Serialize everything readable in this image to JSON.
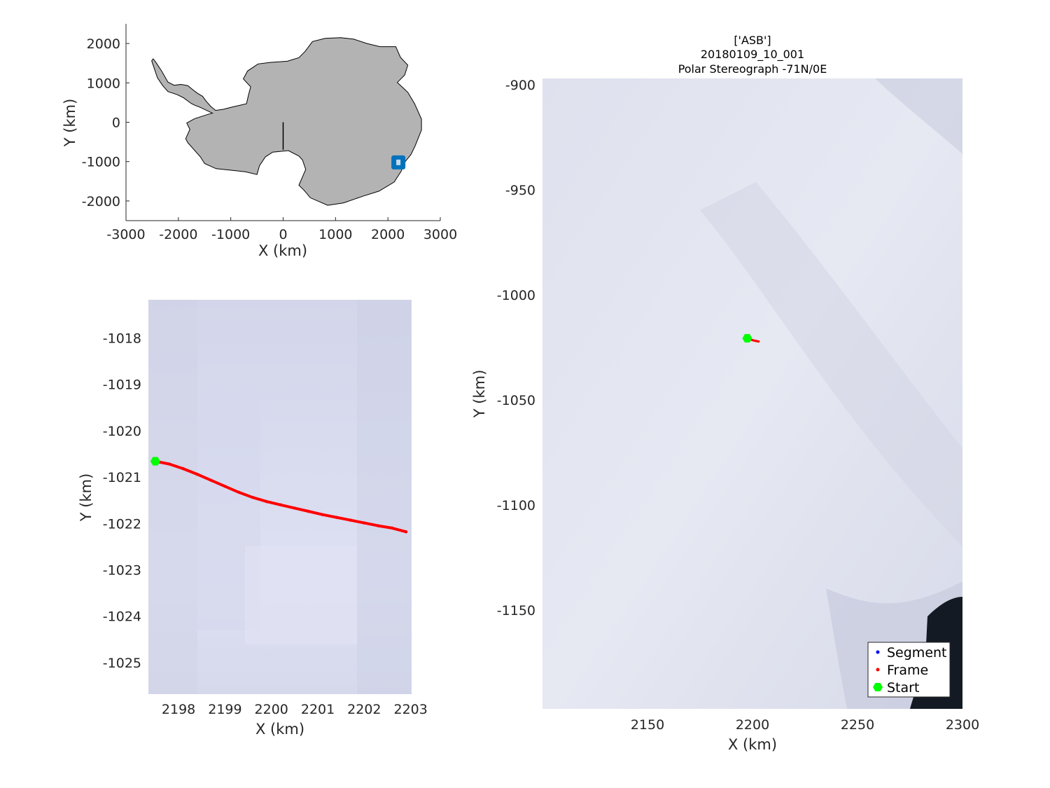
{
  "colors": {
    "background": "#ffffff",
    "axis": "#262626",
    "land": "#b3b3b3",
    "coast": "#000000",
    "marker_blue": "#0072bd",
    "ice": "#d8dbec",
    "ocean_dark": "#141a24",
    "segment": "#0000ff",
    "frame": "#ff0000",
    "start": "#00ff00"
  },
  "legend": {
    "placement": "bottom-right",
    "entries": [
      {
        "label": "Segment",
        "color": "#0000ff",
        "marker": "dot"
      },
      {
        "label": "Frame",
        "color": "#ff0000",
        "marker": "dot"
      },
      {
        "label": "Start",
        "color": "#00ff00",
        "marker": "hexagram"
      }
    ]
  },
  "chart_data": [
    {
      "id": "overview",
      "type": "map",
      "xlabel": "X (km)",
      "ylabel": "Y (km)",
      "xlim": [
        -3000,
        3000
      ],
      "ylim": [
        -2500,
        2500
      ],
      "xticks": [
        -3000,
        -2000,
        -1000,
        0,
        1000,
        2000,
        3000
      ],
      "yticks": [
        -2000,
        -1000,
        0,
        1000,
        2000
      ],
      "coast": [
        [
          -2480,
          1610
        ],
        [
          -2430,
          1520
        ],
        [
          -2320,
          1300
        ],
        [
          -2200,
          1020
        ],
        [
          -2080,
          940
        ],
        [
          -1950,
          960
        ],
        [
          -1820,
          930
        ],
        [
          -1720,
          820
        ],
        [
          -1640,
          740
        ],
        [
          -1540,
          660
        ],
        [
          -1460,
          520
        ],
        [
          -1380,
          400
        ],
        [
          -1290,
          300
        ],
        [
          -1140,
          330
        ],
        [
          -990,
          380
        ],
        [
          -860,
          420
        ],
        [
          -700,
          470
        ],
        [
          -660,
          700
        ],
        [
          -620,
          900
        ],
        [
          -760,
          1100
        ],
        [
          -680,
          1300
        ],
        [
          -480,
          1480
        ],
        [
          -250,
          1520
        ],
        [
          80,
          1550
        ],
        [
          300,
          1640
        ],
        [
          420,
          1800
        ],
        [
          560,
          2050
        ],
        [
          800,
          2130
        ],
        [
          1100,
          2150
        ],
        [
          1350,
          2110
        ],
        [
          1600,
          2000
        ],
        [
          1850,
          1920
        ],
        [
          2150,
          1920
        ],
        [
          2240,
          1650
        ],
        [
          2380,
          1450
        ],
        [
          2320,
          1200
        ],
        [
          2180,
          1010
        ],
        [
          2380,
          760
        ],
        [
          2510,
          470
        ],
        [
          2640,
          80
        ],
        [
          2640,
          -200
        ],
        [
          2520,
          -600
        ],
        [
          2440,
          -820
        ],
        [
          2330,
          -1000
        ],
        [
          2250,
          -1250
        ],
        [
          2120,
          -1520
        ],
        [
          1830,
          -1750
        ],
        [
          1520,
          -1880
        ],
        [
          1150,
          -2050
        ],
        [
          850,
          -2110
        ],
        [
          520,
          -1920
        ],
        [
          400,
          -1730
        ],
        [
          300,
          -1600
        ],
        [
          430,
          -1200
        ],
        [
          370,
          -960
        ],
        [
          300,
          -860
        ],
        [
          100,
          -720
        ],
        [
          -200,
          -760
        ],
        [
          -340,
          -880
        ],
        [
          -450,
          -1100
        ],
        [
          -500,
          -1330
        ],
        [
          -720,
          -1260
        ],
        [
          -920,
          -1230
        ],
        [
          -1280,
          -1180
        ],
        [
          -1500,
          -1050
        ],
        [
          -1580,
          -880
        ],
        [
          -1820,
          -520
        ],
        [
          -1860,
          -420
        ],
        [
          -1780,
          -180
        ],
        [
          -1840,
          -20
        ],
        [
          -1690,
          90
        ],
        [
          -1410,
          210
        ],
        [
          -1350,
          230
        ],
        [
          -1570,
          370
        ],
        [
          -1700,
          440
        ],
        [
          -1760,
          480
        ],
        [
          -1900,
          620
        ],
        [
          -2020,
          700
        ],
        [
          -2200,
          780
        ],
        [
          -2300,
          930
        ],
        [
          -2400,
          1130
        ],
        [
          -2510,
          1560
        ]
      ],
      "meridian": {
        "x": 0,
        "y": [
          0,
          -700
        ]
      },
      "marker": {
        "x": 2200,
        "y": -1020
      }
    },
    {
      "id": "zoom",
      "type": "line",
      "xlabel": "X (km)",
      "ylabel": "Y (km)",
      "xlim": [
        2197.35,
        2203.02
      ],
      "ylim": [
        -1025.68,
        -1017.18
      ],
      "xticks": [
        2198,
        2199,
        2200,
        2201,
        2202,
        2203
      ],
      "yticks": [
        -1018,
        -1019,
        -1020,
        -1021,
        -1022,
        -1023,
        -1024,
        -1025
      ],
      "series": [
        {
          "role": "Frame",
          "x": [
            2197.5,
            2197.8,
            2198.1,
            2198.4,
            2198.7,
            2199.0,
            2199.3,
            2199.6,
            2199.9,
            2200.2,
            2200.5,
            2200.8,
            2201.1,
            2201.4,
            2201.7,
            2202.0,
            2202.3,
            2202.6,
            2202.9
          ],
          "y": [
            -1020.66,
            -1020.72,
            -1020.82,
            -1020.94,
            -1021.07,
            -1021.2,
            -1021.33,
            -1021.44,
            -1021.53,
            -1021.6,
            -1021.67,
            -1021.74,
            -1021.81,
            -1021.87,
            -1021.93,
            -1021.99,
            -1022.05,
            -1022.1,
            -1022.18
          ]
        }
      ],
      "start": {
        "x": 2197.5,
        "y": -1020.66
      }
    },
    {
      "id": "context",
      "type": "line",
      "title": [
        "['ASB']",
        "20180109_10_001",
        "Polar Stereograph -71N/0E"
      ],
      "xlabel": "X (km)",
      "ylabel": "Y (km)",
      "xlim": [
        2100,
        2300
      ],
      "ylim": [
        -1197,
        -897
      ],
      "xticks": [
        2150,
        2200,
        2250,
        2300
      ],
      "yticks": [
        -900,
        -950,
        -1000,
        -1050,
        -1100,
        -1150
      ],
      "series": [
        {
          "role": "Frame",
          "x": [
            2197.5,
            2198.4,
            2199.3,
            2200.2,
            2201.1,
            2202.0,
            2202.9
          ],
          "y": [
            -1020.66,
            -1020.94,
            -1021.33,
            -1021.6,
            -1021.81,
            -1021.99,
            -1022.18
          ]
        }
      ],
      "start": {
        "x": 2197.5,
        "y": -1020.66
      }
    }
  ]
}
